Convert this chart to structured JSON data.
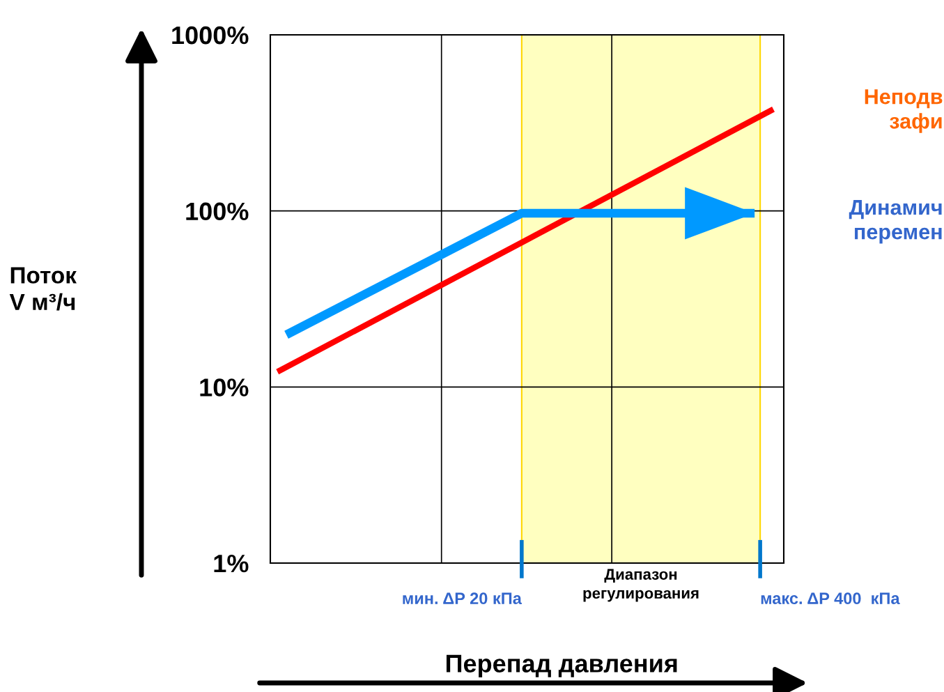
{
  "chart_data": {
    "type": "line",
    "xlabel": "Перепад давления",
    "ylabel": "Поток\nV м³/ч",
    "log": "xy",
    "xlim": [
      0.85,
      538
    ],
    "xticks": [
      {
        "value": 7.3,
        "label": null
      },
      {
        "value": 62,
        "label": null
      }
    ],
    "ylim": [
      1,
      1000
    ],
    "yticks": [
      {
        "value": 1,
        "label": "1%"
      },
      {
        "value": 10,
        "label": "10%"
      },
      {
        "value": 100,
        "label": "100%"
      },
      {
        "value": 1000,
        "label": "1000%"
      }
    ],
    "tick_labels": "y",
    "grid": true,
    "series": [
      {
        "color": "#ff0000",
        "x": [
          0.93,
          472
        ],
        "values": [
          12.2,
          378
        ]
      },
      {
        "color": "#0099ff",
        "x": [
          1.04,
          20,
          373
        ],
        "values": [
          19.8,
          97,
          97
        ]
      }
    ],
    "bands": [
      {
        "axis": "x",
        "from": 20,
        "to": 400,
        "label": "Диапазон\nрегулирования",
        "color": "#ffffc0"
      }
    ],
    "ref_lines": [
      {
        "axis": "x",
        "value": 20,
        "label": "мин. ΔP 20 кПа",
        "color": "#0077cc"
      },
      {
        "axis": "x",
        "value": 400,
        "label": "макс. ΔP 400  кПа",
        "color": "#0077cc"
      }
    ],
    "annotations": [
      "Неподв\nзафи",
      "Динамич\nперемен"
    ]
  }
}
